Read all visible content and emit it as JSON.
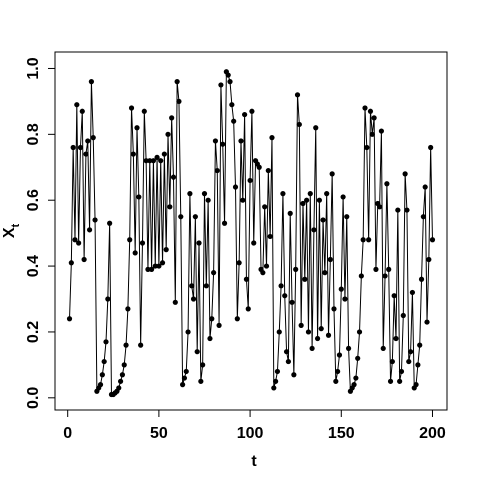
{
  "chart_data": {
    "type": "line",
    "xlabel": "t",
    "ylabel": "X",
    "ylabel_sub": "t",
    "x": [
      1,
      2,
      3,
      4,
      5,
      6,
      7,
      8,
      9,
      10,
      11,
      12,
      13,
      14,
      15,
      16,
      17,
      18,
      19,
      20,
      21,
      22,
      23,
      24,
      25,
      26,
      27,
      28,
      29,
      30,
      31,
      32,
      33,
      34,
      35,
      36,
      37,
      38,
      39,
      40,
      41,
      42,
      43,
      44,
      45,
      46,
      47,
      48,
      49,
      50,
      51,
      52,
      53,
      54,
      55,
      56,
      57,
      58,
      59,
      60,
      61,
      62,
      63,
      64,
      65,
      66,
      67,
      68,
      69,
      70,
      71,
      72,
      73,
      74,
      75,
      76,
      77,
      78,
      79,
      80,
      81,
      82,
      83,
      84,
      85,
      86,
      87,
      88,
      89,
      90,
      91,
      92,
      93,
      94,
      95,
      96,
      97,
      98,
      99,
      100,
      101,
      102,
      103,
      104,
      105,
      106,
      107,
      108,
      109,
      110,
      111,
      112,
      113,
      114,
      115,
      116,
      117,
      118,
      119,
      120,
      121,
      122,
      123,
      124,
      125,
      126,
      127,
      128,
      129,
      130,
      131,
      132,
      133,
      134,
      135,
      136,
      137,
      138,
      139,
      140,
      141,
      142,
      143,
      144,
      145,
      146,
      147,
      148,
      149,
      150,
      151,
      152,
      153,
      154,
      155,
      156,
      157,
      158,
      159,
      160,
      161,
      162,
      163,
      164,
      165,
      166,
      167,
      168,
      169,
      170,
      171,
      172,
      173,
      174,
      175,
      176,
      177,
      178,
      179,
      180,
      181,
      182,
      183,
      184,
      185,
      186,
      187,
      188,
      189,
      190,
      191,
      192,
      193,
      194,
      195,
      196,
      197,
      198,
      199,
      200
    ],
    "values": [
      0.24,
      0.41,
      0.76,
      0.48,
      0.89,
      0.47,
      0.76,
      0.87,
      0.42,
      0.74,
      0.78,
      0.51,
      0.96,
      0.79,
      0.54,
      0.02,
      0.03,
      0.04,
      0.07,
      0.11,
      0.17,
      0.3,
      0.53,
      0.01,
      0.01,
      0.015,
      0.02,
      0.03,
      0.05,
      0.07,
      0.1,
      0.16,
      0.27,
      0.48,
      0.88,
      0.74,
      0.44,
      0.82,
      0.61,
      0.16,
      0.47,
      0.87,
      0.72,
      0.39,
      0.72,
      0.39,
      0.72,
      0.4,
      0.73,
      0.4,
      0.72,
      0.41,
      0.74,
      0.45,
      0.8,
      0.58,
      0.85,
      0.67,
      0.29,
      0.96,
      0.9,
      0.55,
      0.04,
      0.06,
      0.08,
      0.2,
      0.62,
      0.34,
      0.3,
      0.55,
      0.14,
      0.47,
      0.05,
      0.1,
      0.62,
      0.34,
      0.6,
      0.18,
      0.24,
      0.38,
      0.78,
      0.69,
      0.22,
      0.95,
      0.77,
      0.53,
      0.99,
      0.98,
      0.96,
      0.89,
      0.84,
      0.64,
      0.24,
      0.41,
      0.78,
      0.6,
      0.86,
      0.36,
      0.27,
      0.66,
      0.87,
      0.47,
      0.72,
      0.71,
      0.7,
      0.39,
      0.38,
      0.58,
      0.4,
      0.69,
      0.49,
      0.79,
      0.03,
      0.05,
      0.08,
      0.2,
      0.34,
      0.62,
      0.31,
      0.14,
      0.11,
      0.56,
      0.29,
      0.07,
      0.39,
      0.92,
      0.83,
      0.22,
      0.59,
      0.36,
      0.6,
      0.2,
      0.62,
      0.15,
      0.51,
      0.82,
      0.18,
      0.6,
      0.21,
      0.54,
      0.38,
      0.62,
      0.19,
      0.42,
      0.68,
      0.27,
      0.05,
      0.08,
      0.13,
      0.33,
      0.61,
      0.3,
      0.55,
      0.15,
      0.02,
      0.03,
      0.04,
      0.06,
      0.12,
      0.2,
      0.37,
      0.48,
      0.88,
      0.76,
      0.48,
      0.87,
      0.8,
      0.85,
      0.39,
      0.59,
      0.58,
      0.81,
      0.15,
      0.37,
      0.65,
      0.39,
      0.05,
      0.11,
      0.31,
      0.18,
      0.57,
      0.05,
      0.08,
      0.25,
      0.68,
      0.57,
      0.11,
      0.14,
      0.32,
      0.03,
      0.04,
      0.1,
      0.16,
      0.36,
      0.55,
      0.64,
      0.23,
      0.42,
      0.76,
      0.48
    ],
    "color": "#000000",
    "xlim": [
      -6.96,
      207.96
    ],
    "xticks": [
      0,
      50,
      100,
      150,
      200
    ],
    "ylim": [
      -0.037,
      1.05
    ],
    "yticks": [
      {
        "value": 0,
        "label": "0.0"
      },
      0.2,
      0.4,
      0.6,
      0.8,
      {
        "value": 1,
        "label": "1.0"
      }
    ]
  }
}
